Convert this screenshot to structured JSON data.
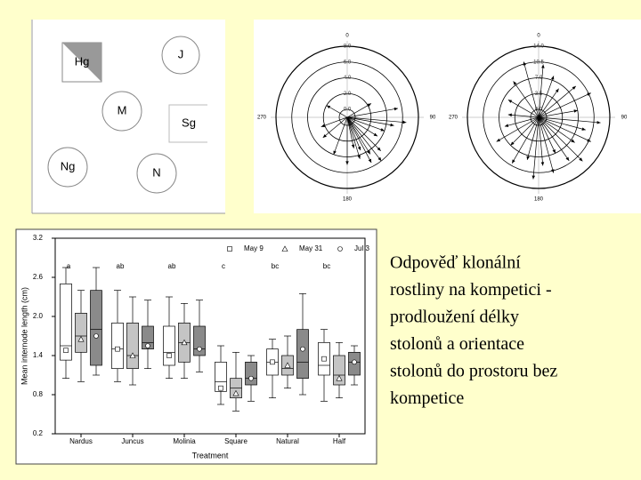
{
  "diagram": {
    "nodes": [
      {
        "label": "Hg"
      },
      {
        "label": "J"
      },
      {
        "label": "M"
      },
      {
        "label": "Sg"
      },
      {
        "label": "Ng"
      },
      {
        "label": "N"
      }
    ]
  },
  "polar": [
    {
      "angles": [
        0,
        90,
        180,
        270
      ],
      "rlim": [
        0,
        8
      ],
      "rings": [
        {
          "value": 0,
          "label": "0.0"
        },
        {
          "value": 2,
          "label": "2.0"
        },
        {
          "value": 4,
          "label": "4.0"
        },
        {
          "value": 6,
          "label": "6.0"
        },
        {
          "value": 8,
          "label": "8.0"
        }
      ],
      "arrows": [
        {
          "angle": 60,
          "length": 2.5
        },
        {
          "angle": 80,
          "length": 5.5
        },
        {
          "angle": 95,
          "length": 6.5
        },
        {
          "angle": 100,
          "length": 5
        },
        {
          "angle": 110,
          "length": 4
        },
        {
          "angle": 122,
          "length": 3.5
        },
        {
          "angle": 135,
          "length": 5
        },
        {
          "angle": 142,
          "length": 6
        },
        {
          "angle": 148,
          "length": 4.5
        },
        {
          "angle": 152,
          "length": 5.5
        },
        {
          "angle": 158,
          "length": 3.5
        },
        {
          "angle": 163,
          "length": 4.5
        },
        {
          "angle": 168,
          "length": 3
        },
        {
          "angle": 180,
          "length": 5
        },
        {
          "angle": 200,
          "length": 4
        },
        {
          "angle": 230,
          "length": 3
        },
        {
          "angle": 250,
          "length": 2.5
        },
        {
          "angle": 300,
          "length": 2
        }
      ]
    },
    {
      "angles": [
        0,
        90,
        180,
        270
      ],
      "rlim": [
        0,
        14
      ],
      "rings": [
        {
          "value": 0,
          "label": "0.0"
        },
        {
          "value": 3.5,
          "label": "3.5"
        },
        {
          "value": 7,
          "label": "7.0"
        },
        {
          "value": 10.5,
          "label": "10.5"
        },
        {
          "value": 14,
          "label": "14.0"
        }
      ],
      "arrows": [
        {
          "angle": 5,
          "length": 10
        },
        {
          "angle": 20,
          "length": 8
        },
        {
          "angle": 35,
          "length": 6
        },
        {
          "angle": 50,
          "length": 9
        },
        {
          "angle": 65,
          "length": 11
        },
        {
          "angle": 80,
          "length": 7
        },
        {
          "angle": 95,
          "length": 12
        },
        {
          "angle": 105,
          "length": 9
        },
        {
          "angle": 115,
          "length": 11
        },
        {
          "angle": 125,
          "length": 8
        },
        {
          "angle": 135,
          "length": 12
        },
        {
          "angle": 145,
          "length": 10
        },
        {
          "angle": 155,
          "length": 7
        },
        {
          "angle": 165,
          "length": 11
        },
        {
          "angle": 175,
          "length": 9
        },
        {
          "angle": 185,
          "length": 12
        },
        {
          "angle": 195,
          "length": 8
        },
        {
          "angle": 210,
          "length": 10
        },
        {
          "angle": 225,
          "length": 7
        },
        {
          "angle": 240,
          "length": 9
        },
        {
          "angle": 255,
          "length": 6
        },
        {
          "angle": 275,
          "length": 5
        },
        {
          "angle": 300,
          "length": 6
        },
        {
          "angle": 325,
          "length": 8
        },
        {
          "angle": 345,
          "length": 11
        }
      ]
    }
  ],
  "chart_data": {
    "type": "box",
    "ylabel": "Mean internode length (cm)",
    "xlabel": "Treatment",
    "categories": [
      "Nardus",
      "Juncus",
      "Molinia",
      "Square",
      "Natural",
      "Half"
    ],
    "letters": [
      "a",
      "ab",
      "ab",
      "c",
      "bc",
      "bc"
    ],
    "ylim": [
      0.2,
      3.2
    ],
    "yticks": [
      0.2,
      0.8,
      1.4,
      {
        "value": 2,
        "label": "2.0"
      },
      2.6,
      3.2
    ],
    "series": [
      {
        "name": "May 9",
        "color": "#ffffff",
        "marker": "square",
        "min": [
          1.05,
          1.0,
          1.05,
          0.65,
          0.75,
          0.7
        ],
        "q1": [
          1.33,
          1.2,
          1.25,
          0.85,
          1.1,
          1.1
        ],
        "median": [
          1.55,
          1.5,
          1.45,
          1.0,
          1.3,
          1.25
        ],
        "q3": [
          2.5,
          1.9,
          1.85,
          1.3,
          1.5,
          1.6
        ],
        "max": [
          2.75,
          2.4,
          2.3,
          1.55,
          1.65,
          1.8
        ],
        "mean": [
          1.48,
          1.5,
          1.4,
          0.9,
          1.3,
          1.35
        ]
      },
      {
        "name": "May 31",
        "color": "#c4c4c4",
        "marker": "triangle",
        "min": [
          1.0,
          0.95,
          1.05,
          0.55,
          0.9,
          0.75
        ],
        "q1": [
          1.45,
          1.2,
          1.3,
          0.75,
          1.1,
          0.95
        ],
        "median": [
          1.7,
          1.4,
          1.6,
          0.9,
          1.2,
          1.1
        ],
        "q3": [
          2.05,
          1.9,
          1.9,
          1.05,
          1.4,
          1.4
        ],
        "max": [
          2.4,
          2.3,
          2.2,
          1.45,
          1.7,
          1.6
        ],
        "mean": [
          1.65,
          1.4,
          1.6,
          0.82,
          1.25,
          1.05
        ]
      },
      {
        "name": "Jul 3",
        "color": "#8a8a8a",
        "marker": "circle",
        "min": [
          1.1,
          1.2,
          1.15,
          0.7,
          0.8,
          0.95
        ],
        "q1": [
          1.25,
          1.5,
          1.4,
          0.95,
          1.05,
          1.1
        ],
        "median": [
          1.8,
          1.6,
          1.5,
          1.05,
          1.3,
          1.3
        ],
        "q3": [
          2.4,
          1.85,
          1.85,
          1.3,
          1.8,
          1.45
        ],
        "max": [
          2.75,
          2.25,
          2.25,
          1.4,
          2.35,
          1.55
        ],
        "mean": [
          1.7,
          1.55,
          1.5,
          1.05,
          1.5,
          1.3
        ]
      }
    ]
  },
  "caption": [
    "Odpověď klonální",
    "rostliny na kompetici -",
    "prodloužení délky",
    "stolonů a orientace",
    "stolonů do prostoru bez",
    "kompetice"
  ]
}
